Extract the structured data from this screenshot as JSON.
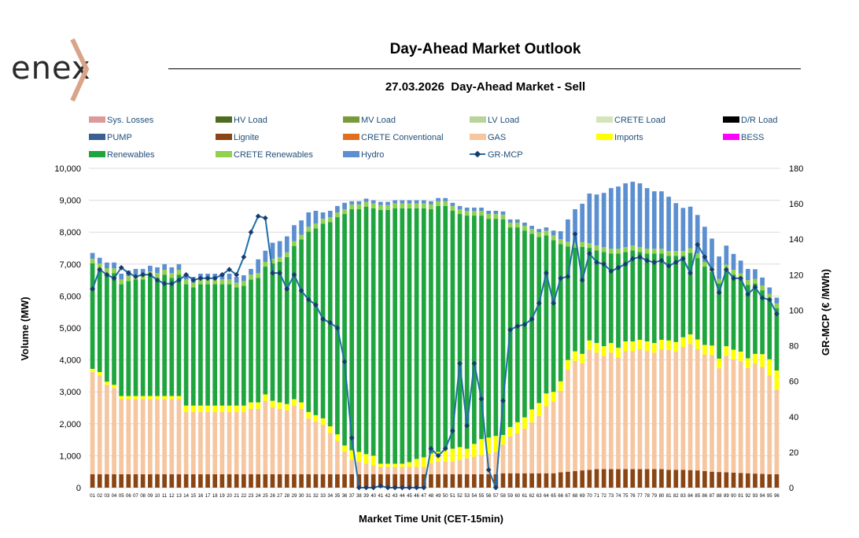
{
  "header": {
    "logo_text": "enex",
    "title": "Day-Ahead Market Outlook",
    "subtitle": "27.03.2026  Day-Ahead Market - Sell"
  },
  "chart_data": {
    "type": "bar",
    "stacked": true,
    "title": "Day-Ahead Market Outlook",
    "subtitle": "27.03.2026  Day-Ahead Market - Sell",
    "xlabel": "Market Time Unit (CET-15min)",
    "ylabel": "Volume (MW)",
    "y2label": "GR-MCP (€ /MWh)",
    "ylim": [
      0,
      10000
    ],
    "y2lim": [
      0,
      180
    ],
    "yticks": [
      "0",
      "1,000",
      "2,000",
      "3,000",
      "4,000",
      "5,000",
      "6,000",
      "7,000",
      "8,000",
      "9,000",
      "10,000"
    ],
    "y2ticks": [
      "0",
      "20",
      "40",
      "60",
      "80",
      "100",
      "120",
      "140",
      "160",
      "180"
    ],
    "grid": true,
    "legend_position": "top",
    "legend": [
      {
        "name": "Sys. Losses",
        "color": "#dc9a9a",
        "kind": "bar"
      },
      {
        "name": "HV Load",
        "color": "#4e6b22",
        "kind": "bar"
      },
      {
        "name": "MV Load",
        "color": "#7a9a3a",
        "kind": "bar"
      },
      {
        "name": "LV Load",
        "color": "#b8d49a",
        "kind": "bar"
      },
      {
        "name": "CRETE Load",
        "color": "#d6e4bc",
        "kind": "bar"
      },
      {
        "name": "D/R Load",
        "color": "#000000",
        "kind": "bar"
      },
      {
        "name": "PUMP",
        "color": "#3b5f8f",
        "kind": "bar"
      },
      {
        "name": "Lignite",
        "color": "#8b4513",
        "kind": "bar"
      },
      {
        "name": "CRETE Conventional",
        "color": "#e07020",
        "kind": "bar"
      },
      {
        "name": "GAS",
        "color": "#f5c6a0",
        "kind": "bar"
      },
      {
        "name": "Imports",
        "color": "#ffff00",
        "kind": "bar"
      },
      {
        "name": "BESS",
        "color": "#ff00ff",
        "kind": "bar"
      },
      {
        "name": "Renewables",
        "color": "#1fa53d",
        "kind": "bar"
      },
      {
        "name": "CRETE Renewables",
        "color": "#92d050",
        "kind": "bar"
      },
      {
        "name": "Hydro",
        "color": "#5b8fd0",
        "kind": "bar"
      },
      {
        "name": "GR-MCP",
        "color": "#1f6fa8",
        "kind": "line"
      }
    ],
    "categories": [
      "01",
      "02",
      "03",
      "04",
      "05",
      "06",
      "07",
      "08",
      "09",
      "10",
      "11",
      "12",
      "13",
      "14",
      "15",
      "16",
      "17",
      "18",
      "19",
      "20",
      "21",
      "22",
      "23",
      "24",
      "25",
      "26",
      "27",
      "28",
      "29",
      "30",
      "31",
      "32",
      "33",
      "34",
      "35",
      "36",
      "37",
      "38",
      "39",
      "40",
      "41",
      "42",
      "43",
      "44",
      "45",
      "46",
      "47",
      "48",
      "49",
      "50",
      "51",
      "52",
      "53",
      "54",
      "55",
      "56",
      "57",
      "58",
      "59",
      "60",
      "61",
      "62",
      "63",
      "64",
      "65",
      "66",
      "67",
      "68",
      "69",
      "70",
      "71",
      "72",
      "73",
      "74",
      "75",
      "76",
      "77",
      "78",
      "79",
      "80",
      "81",
      "82",
      "83",
      "84",
      "85",
      "86",
      "87",
      "88",
      "89",
      "90",
      "91",
      "92",
      "93",
      "94",
      "95",
      "96"
    ],
    "series": [
      {
        "name": "Lignite",
        "values": [
          420,
          420,
          420,
          420,
          420,
          420,
          420,
          420,
          420,
          420,
          420,
          420,
          420,
          420,
          420,
          420,
          420,
          420,
          420,
          420,
          420,
          420,
          420,
          420,
          420,
          420,
          420,
          420,
          420,
          420,
          420,
          420,
          420,
          420,
          420,
          420,
          420,
          420,
          420,
          420,
          420,
          420,
          420,
          420,
          420,
          420,
          420,
          420,
          420,
          420,
          420,
          420,
          420,
          420,
          420,
          420,
          420,
          450,
          450,
          450,
          450,
          450,
          450,
          450,
          450,
          480,
          500,
          520,
          540,
          560,
          580,
          580,
          580,
          580,
          580,
          580,
          580,
          580,
          580,
          580,
          560,
          560,
          560,
          550,
          540,
          520,
          500,
          490,
          480,
          470,
          460,
          450,
          440,
          430,
          420,
          420
        ]
      },
      {
        "name": "GAS",
        "values": [
          3200,
          3100,
          2800,
          2700,
          2350,
          2350,
          2350,
          2350,
          2350,
          2350,
          2350,
          2350,
          2350,
          1950,
          1950,
          1950,
          1950,
          1950,
          1950,
          1950,
          1950,
          1950,
          2050,
          2050,
          2300,
          2100,
          2050,
          2000,
          2150,
          2050,
          1750,
          1650,
          1550,
          1300,
          1050,
          700,
          450,
          400,
          330,
          280,
          230,
          230,
          230,
          230,
          230,
          230,
          230,
          350,
          400,
          400,
          400,
          450,
          500,
          550,
          600,
          650,
          700,
          900,
          1150,
          1250,
          1400,
          1600,
          1800,
          2100,
          2250,
          2550,
          3200,
          3450,
          3350,
          3750,
          3650,
          3550,
          3650,
          3500,
          3700,
          3700,
          3750,
          3700,
          3650,
          3750,
          3750,
          3700,
          3850,
          3950,
          3800,
          3650,
          3650,
          3250,
          3650,
          3550,
          3500,
          3300,
          3450,
          3350,
          3100,
          2650
        ]
      },
      {
        "name": "Imports",
        "values": [
          100,
          100,
          100,
          100,
          100,
          100,
          100,
          100,
          100,
          100,
          100,
          100,
          100,
          200,
          200,
          200,
          200,
          200,
          200,
          200,
          200,
          200,
          200,
          200,
          200,
          200,
          200,
          200,
          200,
          200,
          200,
          200,
          200,
          200,
          200,
          200,
          300,
          300,
          300,
          300,
          100,
          100,
          100,
          100,
          150,
          250,
          300,
          300,
          300,
          400,
          400,
          400,
          300,
          400,
          500,
          500,
          500,
          300,
          300,
          350,
          350,
          400,
          400,
          400,
          300,
          300,
          300,
          300,
          300,
          300,
          300,
          300,
          300,
          300,
          300,
          300,
          300,
          300,
          300,
          300,
          300,
          300,
          300,
          300,
          300,
          300,
          300,
          300,
          300,
          300,
          300,
          300,
          300,
          400,
          500,
          600
        ]
      },
      {
        "name": "Renewables",
        "values": [
          3300,
          3250,
          3400,
          3500,
          3500,
          3600,
          3650,
          3650,
          3750,
          3700,
          3800,
          3700,
          3800,
          3800,
          3700,
          3800,
          3800,
          3800,
          3800,
          3800,
          3700,
          3750,
          3850,
          3900,
          4000,
          4300,
          4400,
          4600,
          4800,
          5100,
          5650,
          5850,
          6100,
          6400,
          6800,
          7250,
          7550,
          7600,
          7750,
          7750,
          7950,
          7950,
          8000,
          8000,
          7950,
          7850,
          7800,
          7650,
          7700,
          7600,
          7450,
          7300,
          7300,
          7150,
          7000,
          6850,
          6800,
          6750,
          6250,
          6100,
          5850,
          5500,
          5200,
          4950,
          4750,
          4300,
          3550,
          3250,
          3350,
          2900,
          2900,
          2950,
          2800,
          2950,
          2800,
          2850,
          2750,
          2750,
          2800,
          2700,
          2650,
          2700,
          2550,
          2550,
          2550,
          2450,
          2300,
          2350,
          2400,
          2350,
          2300,
          2300,
          2200,
          2000,
          1900,
          1950
        ]
      },
      {
        "name": "CRETE Renewables",
        "values": [
          150,
          150,
          150,
          150,
          150,
          150,
          150,
          150,
          150,
          150,
          150,
          150,
          150,
          150,
          150,
          150,
          150,
          150,
          150,
          150,
          150,
          150,
          150,
          150,
          150,
          150,
          150,
          150,
          150,
          150,
          150,
          150,
          150,
          150,
          150,
          150,
          150,
          150,
          150,
          150,
          150,
          150,
          150,
          150,
          150,
          150,
          150,
          150,
          150,
          150,
          150,
          150,
          150,
          150,
          150,
          150,
          150,
          150,
          150,
          150,
          150,
          150,
          150,
          150,
          150,
          150,
          150,
          150,
          150,
          150,
          150,
          150,
          150,
          150,
          150,
          150,
          150,
          150,
          150,
          150,
          150,
          150,
          150,
          150,
          150,
          150,
          150,
          150,
          150,
          150,
          150,
          150,
          150,
          150,
          150,
          150
        ]
      },
      {
        "name": "Hydro",
        "values": [
          180,
          180,
          180,
          180,
          180,
          180,
          180,
          180,
          180,
          180,
          180,
          180,
          180,
          180,
          180,
          180,
          180,
          180,
          180,
          180,
          180,
          180,
          180,
          430,
          350,
          500,
          500,
          500,
          500,
          450,
          450,
          400,
          200,
          200,
          200,
          200,
          100,
          100,
          100,
          100,
          100,
          100,
          100,
          100,
          100,
          100,
          100,
          100,
          100,
          100,
          100,
          100,
          100,
          100,
          100,
          100,
          100,
          100,
          100,
          100,
          100,
          100,
          100,
          100,
          150,
          250,
          700,
          1050,
          1200,
          1550,
          1600,
          1700,
          1900,
          1950,
          2000,
          2000,
          2000,
          1900,
          1800,
          1800,
          1700,
          1500,
          1350,
          1300,
          1200,
          1100,
          900,
          700,
          600,
          500,
          400,
          350,
          300,
          250,
          200,
          180
        ]
      },
      {
        "name": "GR-MCP",
        "values": [
          112,
          123,
          120,
          118,
          124,
          121,
          119,
          120,
          120,
          117,
          115,
          115,
          117,
          120,
          117,
          118,
          118,
          118,
          120,
          123,
          120,
          130,
          144,
          153,
          152,
          121,
          121,
          112,
          120,
          111,
          106,
          103,
          95,
          93,
          90,
          71,
          28,
          0,
          0,
          0,
          1,
          0,
          0,
          0,
          0,
          0,
          0,
          22,
          18,
          22,
          32,
          70,
          35,
          70,
          50,
          10,
          0,
          49,
          89,
          91,
          92,
          95,
          104,
          121,
          104,
          118,
          119,
          143,
          117,
          132,
          127,
          126,
          122,
          124,
          126,
          129,
          130,
          128,
          127,
          128,
          125,
          127,
          129,
          121,
          137,
          130,
          123,
          110,
          123,
          118,
          118,
          109,
          113,
          107,
          106,
          98
        ]
      }
    ]
  }
}
